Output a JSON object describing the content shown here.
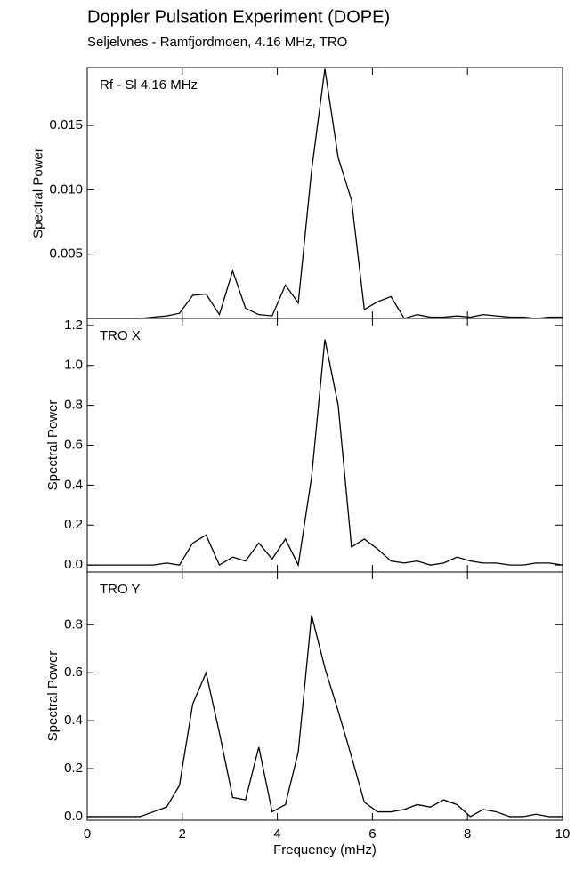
{
  "title": "Doppler Pulsation Experiment (DOPE)",
  "subtitle": "Seljelvnes - Ramfjordmoen, 4.16 MHz, TRO",
  "chart_data": [
    {
      "type": "line",
      "label": "Rf - Sl 4.16 MHz",
      "y_label": "Spectral Power",
      "color": "#000000",
      "x": [
        0,
        0.28,
        0.56,
        0.83,
        1.11,
        1.39,
        1.67,
        1.94,
        2.22,
        2.5,
        2.78,
        3.06,
        3.33,
        3.61,
        3.89,
        4.17,
        4.44,
        4.72,
        5.0,
        5.28,
        5.56,
        5.83,
        6.11,
        6.39,
        6.67,
        6.94,
        7.22,
        7.5,
        7.78,
        8.06,
        8.33,
        8.61,
        8.89,
        9.17,
        9.44,
        9.72,
        10
      ],
      "values": [
        0,
        0,
        0,
        0,
        0,
        0.0001,
        0.0002,
        0.0004,
        0.0018,
        0.0019,
        0.0003,
        0.0037,
        0.0008,
        0.0003,
        0.0002,
        0.0026,
        0.0012,
        0.0115,
        0.0194,
        0.0125,
        0.0092,
        0.0007,
        0.0013,
        0.0017,
        0,
        0.0003,
        0.0001,
        0.0001,
        0.0002,
        0.0001,
        0.0003,
        0.0002,
        0.0001,
        0.0001,
        0,
        0.0001,
        0.0001
      ],
      "xlim": [
        0,
        10
      ],
      "xticks": [
        0,
        2,
        4,
        6,
        8,
        10
      ],
      "ylim": [
        0,
        0.0195
      ],
      "yticks": [
        0.005,
        {
          "value": 0.01,
          "label": "0.010"
        },
        0.015
      ]
    },
    {
      "type": "line",
      "label": "TRO X",
      "y_label": "Spectral Power",
      "color": "#000000",
      "x": [
        0,
        0.28,
        0.56,
        0.83,
        1.11,
        1.39,
        1.67,
        1.94,
        2.22,
        2.5,
        2.78,
        3.06,
        3.33,
        3.61,
        3.89,
        4.17,
        4.44,
        4.72,
        5.0,
        5.28,
        5.56,
        5.83,
        6.11,
        6.39,
        6.67,
        6.94,
        7.22,
        7.5,
        7.78,
        8.06,
        8.33,
        8.61,
        8.89,
        9.17,
        9.44,
        9.72,
        10
      ],
      "values": [
        0,
        0,
        0,
        0,
        0,
        0,
        0.01,
        0,
        0.11,
        0.15,
        0,
        0.04,
        0.02,
        0.11,
        0.03,
        0.13,
        0,
        0.44,
        1.13,
        0.8,
        0.09,
        0.13,
        0.08,
        0.02,
        0.01,
        0.02,
        0,
        0.01,
        0.04,
        0.02,
        0.01,
        0.01,
        0,
        0,
        0.01,
        0.01,
        0
      ],
      "xlim": [
        0,
        10
      ],
      "xticks": [
        0,
        2,
        4,
        6,
        8,
        10
      ],
      "ylim": [
        -0.035,
        1.235
      ],
      "yticks": [
        {
          "value": 0,
          "label": "0.0"
        },
        {
          "value": 0.2,
          "label": "0.2"
        },
        {
          "value": 0.4,
          "label": "0.4"
        },
        {
          "value": 0.6,
          "label": "0.6"
        },
        {
          "value": 0.8,
          "label": "0.8"
        },
        {
          "value": 1,
          "label": "1.0"
        },
        {
          "value": 1.2,
          "label": "1.2"
        }
      ]
    },
    {
      "type": "line",
      "label": "TRO Y",
      "y_label": "Spectral Power",
      "x_label": "Frequency (mHz)",
      "color": "#000000",
      "x": [
        0,
        0.28,
        0.56,
        0.83,
        1.11,
        1.39,
        1.67,
        1.94,
        2.22,
        2.5,
        2.78,
        3.06,
        3.33,
        3.61,
        3.89,
        4.17,
        4.44,
        4.72,
        5.0,
        5.28,
        5.56,
        5.83,
        6.11,
        6.39,
        6.67,
        6.94,
        7.22,
        7.5,
        7.78,
        8.06,
        8.33,
        8.61,
        8.89,
        9.17,
        9.44,
        9.72,
        10
      ],
      "values": [
        0,
        0,
        0,
        0,
        0,
        0.02,
        0.04,
        0.13,
        0.47,
        0.6,
        0.35,
        0.08,
        0.07,
        0.29,
        0.02,
        0.05,
        0.27,
        0.84,
        0.62,
        0.44,
        0.25,
        0.06,
        0.02,
        0.02,
        0.03,
        0.05,
        0.04,
        0.07,
        0.05,
        0,
        0.03,
        0.02,
        0,
        0,
        0.01,
        0,
        0
      ],
      "xlim": [
        0,
        10
      ],
      "xticks": [
        0,
        2,
        4,
        6,
        8,
        10
      ],
      "ylim": [
        -0.015,
        1.02
      ],
      "yticks": [
        {
          "value": 0,
          "label": "0.0"
        },
        {
          "value": 0.2,
          "label": "0.2"
        },
        {
          "value": 0.4,
          "label": "0.4"
        },
        {
          "value": 0.6,
          "label": "0.6"
        },
        {
          "value": 0.8,
          "label": "0.8"
        }
      ]
    }
  ]
}
